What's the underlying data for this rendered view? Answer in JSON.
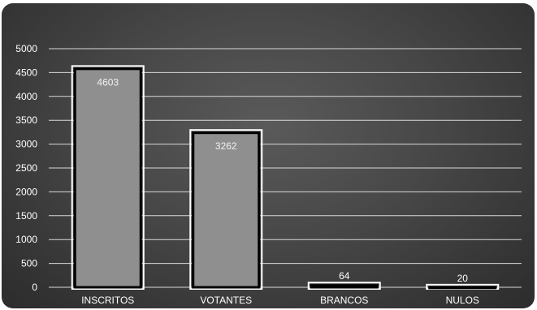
{
  "chart_data": {
    "type": "bar",
    "categories": [
      "INSCRITOS",
      "VOTANTES",
      "BRANCOS",
      "NULOS"
    ],
    "values": [
      4603,
      3262,
      64,
      20
    ],
    "data_labels": [
      "4603",
      "3262",
      "64",
      "20"
    ],
    "title": "",
    "xlabel": "",
    "ylabel": "",
    "ylim": [
      0,
      5000
    ],
    "yticks": [
      0,
      500,
      1000,
      1500,
      2000,
      2500,
      3000,
      3500,
      4000,
      4500,
      5000
    ],
    "grid": true,
    "legend": "none",
    "colors": {
      "bar_fill": "#8f8f8f",
      "bar_border": "#000000",
      "bar_outline": "#ffffff",
      "gridline": "#d9d9d9",
      "text": "#ffffff"
    }
  }
}
